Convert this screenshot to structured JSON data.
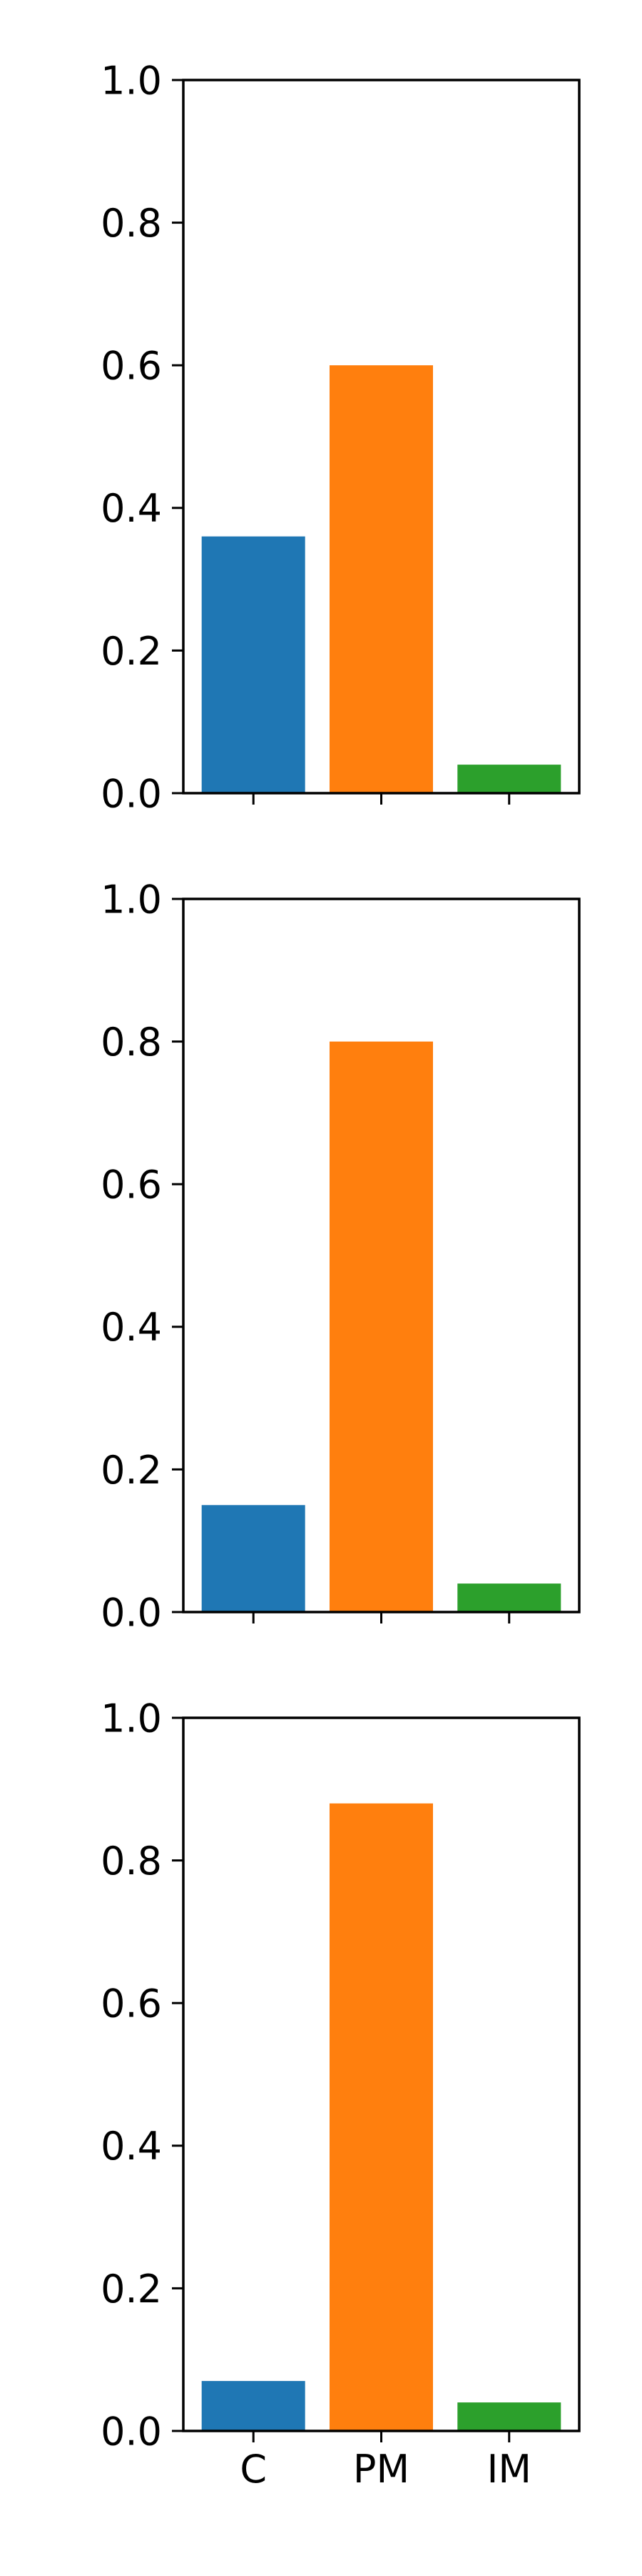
{
  "chart_data": [
    {
      "type": "bar",
      "categories": [
        "C",
        "PM",
        "IM"
      ],
      "values": [
        0.36,
        0.6,
        0.04
      ],
      "colors": [
        "#1f77b4",
        "#ff7f0e",
        "#2ca02c"
      ],
      "ylim": [
        0,
        1
      ],
      "yticks": [
        "0.0",
        "0.2",
        "0.4",
        "0.6",
        "0.8",
        "1.0"
      ],
      "show_xticklabels": false,
      "grid": false
    },
    {
      "type": "bar",
      "categories": [
        "C",
        "PM",
        "IM"
      ],
      "values": [
        0.15,
        0.8,
        0.04
      ],
      "colors": [
        "#1f77b4",
        "#ff7f0e",
        "#2ca02c"
      ],
      "ylim": [
        0,
        1
      ],
      "yticks": [
        "0.0",
        "0.2",
        "0.4",
        "0.6",
        "0.8",
        "1.0"
      ],
      "show_xticklabels": false,
      "grid": false
    },
    {
      "type": "bar",
      "categories": [
        "C",
        "PM",
        "IM"
      ],
      "values": [
        0.07,
        0.88,
        0.04
      ],
      "colors": [
        "#1f77b4",
        "#ff7f0e",
        "#2ca02c"
      ],
      "ylim": [
        0,
        1
      ],
      "yticks": [
        "0.0",
        "0.2",
        "0.4",
        "0.6",
        "0.8",
        "1.0"
      ],
      "show_xticklabels": true,
      "grid": false
    }
  ]
}
